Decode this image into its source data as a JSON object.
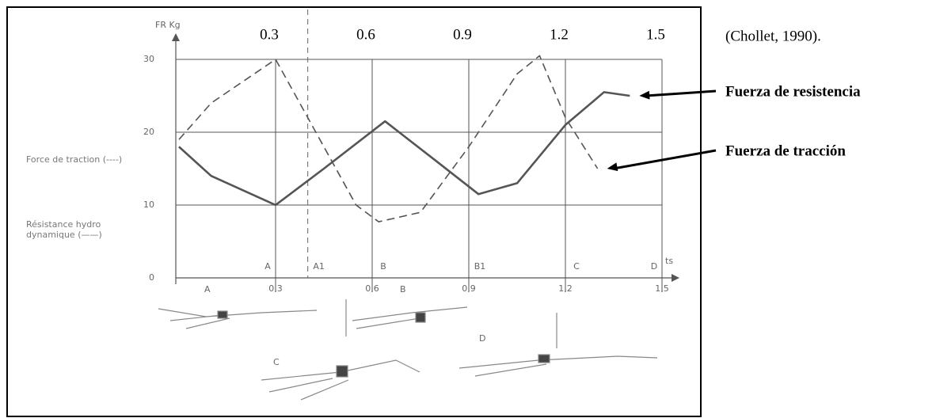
{
  "chart_data": {
    "type": "line",
    "citation": "(Chollet, 1990).",
    "y_axis_label": "FR Kg",
    "x_axis_unit": "ts",
    "xlim": [
      0,
      1.5
    ],
    "ylim": [
      0,
      30
    ],
    "yticks": [
      0,
      10,
      20,
      30
    ],
    "xticks": [
      {
        "value": 0.3,
        "label": "0,3"
      },
      {
        "value": 0.6,
        "label": "0,6"
      },
      {
        "value": 0.9,
        "label": "0,9"
      },
      {
        "value": 1.2,
        "label": "1,2"
      },
      {
        "value": 1.5,
        "label": "1,5"
      }
    ],
    "x2ticks": [
      0.3,
      0.6,
      0.9,
      1.2,
      1.5
    ],
    "phase_line": 0.4,
    "grid": true,
    "phase_labels": [
      {
        "text": "A",
        "x": 0.3
      },
      {
        "text": "A1",
        "x": 0.4
      },
      {
        "text": "B",
        "x": 0.6
      },
      {
        "text": "B1",
        "x": 0.9
      },
      {
        "text": "C",
        "x": 1.2
      },
      {
        "text": "D",
        "x": 1.5
      }
    ],
    "swimmer_labels": [
      "A",
      "B",
      "C",
      "D"
    ],
    "series": [
      {
        "name": "Force de traction (----)",
        "annotation": "Fuerza de tracción",
        "dashed": true,
        "color": "#555555",
        "x": [
          0,
          0.1,
          0.3,
          0.45,
          0.55,
          0.62,
          0.75,
          0.9,
          1.05,
          1.12,
          1.2,
          1.3
        ],
        "values": [
          19,
          24,
          30,
          18,
          10,
          7.7,
          9,
          18,
          28,
          30.5,
          22,
          15
        ]
      },
      {
        "name": "Résistance hydro dynamique (——)",
        "annotation": "Fuerza de resistencia",
        "dashed": false,
        "color": "#555555",
        "x": [
          0,
          0.1,
          0.3,
          0.45,
          0.64,
          0.8,
          0.93,
          1.05,
          1.2,
          1.32,
          1.4
        ],
        "values": [
          18,
          14,
          10,
          15,
          21.5,
          16,
          11.5,
          13,
          21,
          25.5,
          25
        ]
      }
    ]
  }
}
